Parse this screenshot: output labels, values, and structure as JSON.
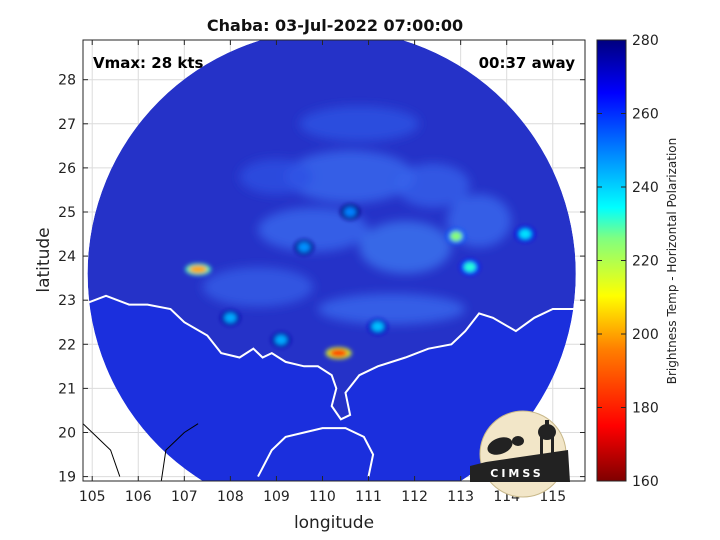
{
  "chart_data": {
    "type": "heatmap",
    "title": "Chaba: 03-Jul-2022 07:00:00",
    "xlabel": "longitude",
    "ylabel": "latitude",
    "xlim": [
      104.8,
      115.7
    ],
    "ylim": [
      18.9,
      28.9
    ],
    "xticks": [
      105,
      106,
      107,
      108,
      109,
      110,
      111,
      112,
      113,
      114,
      115
    ],
    "yticks": [
      19,
      20,
      21,
      22,
      23,
      24,
      25,
      26,
      27,
      28
    ],
    "grid": true,
    "annotations": {
      "vmax": "Vmax: 28 kts",
      "time_away": "00:37 away"
    },
    "swath": {
      "center": [
        110.2,
        23.6
      ],
      "radius_deg": 5.3
    },
    "colorbar": {
      "label": "Brightness Temp - Horizontal Polarization",
      "range": [
        160,
        280
      ],
      "ticks": [
        160,
        180,
        200,
        220,
        240,
        260,
        280
      ],
      "colormap": [
        "#7f0000",
        "#ff0000",
        "#ff8000",
        "#ffff00",
        "#80ff80",
        "#00ffff",
        "#0080ff",
        "#0000ff",
        "#00007f"
      ]
    },
    "background_color": "#2532c8",
    "ocean_color": "#1a2fe0",
    "features": [
      {
        "kind": "convection",
        "lon": 110.35,
        "lat": 21.8,
        "tb": 185
      },
      {
        "kind": "convection",
        "lon": 107.3,
        "lat": 23.7,
        "tb": 200
      },
      {
        "kind": "convection",
        "lon": 112.9,
        "lat": 24.45,
        "tb": 225
      },
      {
        "kind": "convection",
        "lon": 113.2,
        "lat": 23.75,
        "tb": 232
      },
      {
        "kind": "convection",
        "lon": 114.4,
        "lat": 24.5,
        "tb": 238
      },
      {
        "kind": "convection",
        "lon": 109.1,
        "lat": 22.1,
        "tb": 245
      },
      {
        "kind": "convection",
        "lon": 108.0,
        "lat": 22.6,
        "tb": 245
      },
      {
        "kind": "convection",
        "lon": 111.2,
        "lat": 22.4,
        "tb": 242
      },
      {
        "kind": "convection",
        "lon": 110.6,
        "lat": 25.0,
        "tb": 250
      },
      {
        "kind": "convection",
        "lon": 109.6,
        "lat": 24.2,
        "tb": 248
      }
    ]
  },
  "logo": {
    "text": "CIMSS"
  }
}
